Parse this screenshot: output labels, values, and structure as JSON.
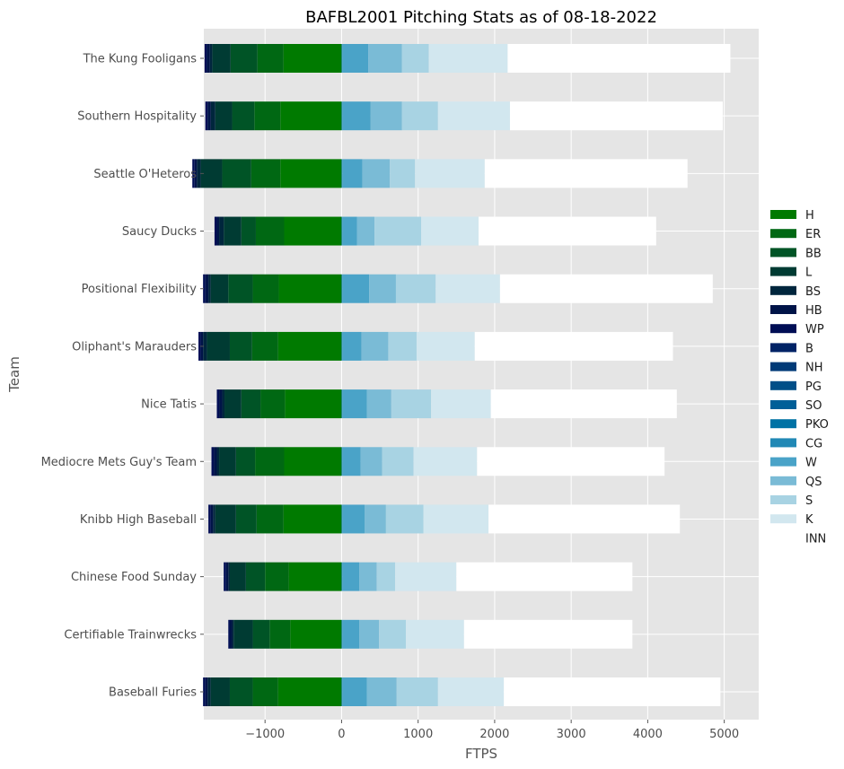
{
  "chart_data": {
    "type": "bar",
    "orientation": "horizontal",
    "stacked": true,
    "title": "BAFBL2001 Pitching Stats as of 08-18-2022",
    "xlabel": "FTPS",
    "ylabel": "Team",
    "xlim": [
      -1800,
      5450
    ],
    "xticks": [
      -1000,
      0,
      1000,
      2000,
      3000,
      4000,
      5000
    ],
    "xtick_labels": [
      "−1000",
      "0",
      "1000",
      "2000",
      "3000",
      "4000",
      "5000"
    ],
    "grid": true,
    "legend_position": "right",
    "categories": [
      "Baseball Furies",
      "Certifiable Trainwrecks",
      "Chinese Food Sunday",
      "Knibb High Baseball",
      "Mediocre Mets Guy's Team",
      "Nice Tatis",
      "Oliphant's Marauders",
      "Positional Flexibility",
      "Saucy Ducks",
      "Seattle O'Heteros",
      "Southern Hospitality",
      "The Kung Fooligans"
    ],
    "series": [
      {
        "name": "H",
        "color": "#007a00",
        "values": [
          -830,
          -670,
          -690,
          -760,
          -750,
          -740,
          -830,
          -820,
          -750,
          -800,
          -800,
          -760
        ]
      },
      {
        "name": "ER",
        "color": "#006813",
        "values": [
          -330,
          -270,
          -310,
          -350,
          -380,
          -320,
          -340,
          -340,
          -370,
          -380,
          -340,
          -340
        ]
      },
      {
        "name": "BB",
        "color": "#005426",
        "values": [
          -300,
          -220,
          -250,
          -270,
          -250,
          -250,
          -290,
          -320,
          -190,
          -380,
          -290,
          -350
        ]
      },
      {
        "name": "L",
        "color": "#003b33",
        "values": [
          -250,
          -250,
          -210,
          -270,
          -220,
          -220,
          -300,
          -230,
          -230,
          -280,
          -220,
          -240
        ]
      },
      {
        "name": "BS",
        "color": "#00263d",
        "values": [
          -40,
          -20,
          -20,
          -30,
          -30,
          -30,
          -50,
          -30,
          -60,
          -50,
          -60,
          -30
        ]
      },
      {
        "name": "HB",
        "color": "#001448",
        "values": [
          -30,
          -30,
          -30,
          -30,
          -40,
          -40,
          -30,
          -40,
          -30,
          -30,
          -40,
          -40
        ]
      },
      {
        "name": "WP",
        "color": "#000e55",
        "values": [
          -30,
          -20,
          -30,
          -30,
          -30,
          -30,
          -30,
          -30,
          -30,
          -30,
          -30,
          -30
        ]
      },
      {
        "name": "B",
        "color": "#002366",
        "values": [
          0,
          0,
          0,
          0,
          0,
          0,
          0,
          0,
          0,
          0,
          0,
          0
        ]
      },
      {
        "name": "NH",
        "color": "#003a77",
        "values": [
          0,
          0,
          0,
          0,
          0,
          0,
          0,
          0,
          0,
          0,
          0,
          0
        ]
      },
      {
        "name": "PG",
        "color": "#004f88",
        "values": [
          0,
          0,
          0,
          0,
          0,
          0,
          0,
          0,
          0,
          0,
          0,
          0
        ]
      },
      {
        "name": "SO",
        "color": "#005f98",
        "values": [
          0,
          0,
          0,
          0,
          0,
          0,
          0,
          0,
          0,
          0,
          0,
          0
        ]
      },
      {
        "name": "PKO",
        "color": "#0072a5",
        "values": [
          0,
          0,
          0,
          0,
          0,
          0,
          0,
          0,
          0,
          0,
          0,
          0
        ]
      },
      {
        "name": "CG",
        "color": "#2188b5",
        "values": [
          10,
          10,
          10,
          10,
          10,
          10,
          10,
          10,
          10,
          10,
          10,
          10
        ]
      },
      {
        "name": "W",
        "color": "#4aa3c8",
        "values": [
          320,
          220,
          220,
          290,
          240,
          320,
          250,
          350,
          190,
          260,
          370,
          340
        ]
      },
      {
        "name": "QS",
        "color": "#7abbd6",
        "values": [
          390,
          260,
          230,
          280,
          280,
          320,
          350,
          350,
          230,
          360,
          410,
          440
        ]
      },
      {
        "name": "S",
        "color": "#a8d3e3",
        "values": [
          540,
          350,
          240,
          490,
          410,
          520,
          370,
          520,
          610,
          330,
          470,
          350
        ]
      },
      {
        "name": "K",
        "color": "#d2e7ef",
        "values": [
          860,
          760,
          800,
          850,
          830,
          780,
          760,
          840,
          750,
          910,
          940,
          1030
        ]
      },
      {
        "name": "INN",
        "color": "#ffffff",
        "values": [
          2830,
          2200,
          2300,
          2500,
          2450,
          2430,
          2590,
          2780,
          2320,
          2650,
          2780,
          2910
        ]
      }
    ]
  }
}
